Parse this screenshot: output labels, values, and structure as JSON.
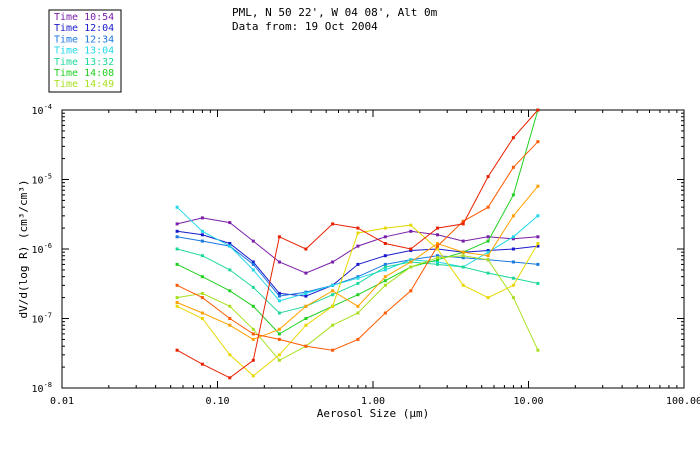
{
  "chart_data": {
    "type": "line",
    "title_line1": "PML, N 50 22', W 04 08', Alt 0m",
    "title_line2": "Data from: 19 Oct 2004",
    "xlabel": "Aerosol Size (μm)",
    "ylabel": "dV/d(log R) (cm³/cm³)",
    "x_scale": "log",
    "y_scale": "log",
    "xlim": [
      0.01,
      100
    ],
    "ylim": [
      1e-08,
      0.0001
    ],
    "x_ticks": [
      {
        "value": 0.01,
        "label": "0.01"
      },
      {
        "value": 0.1,
        "label": "0.10"
      },
      {
        "value": 1,
        "label": "1.00"
      },
      {
        "value": 10,
        "label": "10.00"
      },
      {
        "value": 100,
        "label": "100.00"
      }
    ],
    "y_ticks": [
      {
        "value": 1e-08,
        "base": "10",
        "exp": "-8"
      },
      {
        "value": 1e-07,
        "base": "10",
        "exp": "-7"
      },
      {
        "value": 1e-06,
        "base": "10",
        "exp": "-6"
      },
      {
        "value": 1e-05,
        "base": "10",
        "exp": "-5"
      },
      {
        "value": 0.0001,
        "base": "10",
        "exp": "-4"
      }
    ],
    "grid": false,
    "legend_position": "top-left, outside plot",
    "x": [
      0.055,
      0.08,
      0.12,
      0.17,
      0.25,
      0.37,
      0.55,
      0.8,
      1.2,
      1.75,
      2.6,
      3.8,
      5.5,
      8.0,
      11.5
    ],
    "series": [
      {
        "name": "Time 10:54",
        "color": "#7a1fa8",
        "values": [
          2.3e-06,
          2.8e-06,
          2.4e-06,
          1.3e-06,
          6.5e-07,
          4.5e-07,
          6.5e-07,
          1.1e-06,
          1.5e-06,
          1.8e-06,
          1.6e-06,
          1.3e-06,
          1.5e-06,
          1.4e-06,
          1.5e-06
        ]
      },
      {
        "name": "Time 12:04",
        "color": "#1a1acc",
        "values": [
          1.8e-06,
          1.6e-06,
          1.2e-06,
          6.5e-07,
          2.3e-07,
          2.1e-07,
          3e-07,
          6e-07,
          8e-07,
          9.5e-07,
          1e-06,
          9e-07,
          9.5e-07,
          1e-06,
          1.1e-06
        ]
      },
      {
        "name": "Time 12:34",
        "color": "#1a78e0",
        "values": [
          1.5e-06,
          1.3e-06,
          1.1e-06,
          6e-07,
          2.1e-07,
          2.4e-07,
          3e-07,
          4e-07,
          6e-07,
          7e-07,
          8e-07,
          7.5e-07,
          7e-07,
          6.5e-07,
          6e-07
        ]
      },
      {
        "name": "Time 13:04",
        "color": "#22d8e8",
        "values": [
          4e-06,
          1.8e-06,
          1.1e-06,
          5e-07,
          1.8e-07,
          2.3e-07,
          3e-07,
          3.8e-07,
          5e-07,
          7e-07,
          6.5e-07,
          5.5e-07,
          9e-07,
          1.5e-06,
          3e-06
        ]
      },
      {
        "name": "Time 13:32",
        "color": "#1ed89a",
        "values": [
          1e-06,
          8e-07,
          5e-07,
          2.8e-07,
          1.2e-07,
          1.5e-07,
          2.2e-07,
          3.2e-07,
          5.5e-07,
          6.5e-07,
          6e-07,
          5.5e-07,
          4.5e-07,
          3.8e-07,
          3.2e-07
        ]
      },
      {
        "name": "Time 14:08",
        "color": "#22d022",
        "values": [
          6e-07,
          4e-07,
          2.5e-07,
          1.5e-07,
          6e-08,
          1e-07,
          1.5e-07,
          2.2e-07,
          3.5e-07,
          5.5e-07,
          7e-07,
          9e-07,
          1.3e-06,
          6e-06,
          0.0001
        ]
      },
      {
        "name": "Time 14:49",
        "color": "#a8e020",
        "values": [
          2e-07,
          2.3e-07,
          1.5e-07,
          7e-08,
          2.5e-08,
          4e-08,
          8e-08,
          1.2e-07,
          3e-07,
          5.5e-07,
          7.5e-07,
          8e-07,
          7e-07,
          2e-07,
          3.5e-08
        ]
      },
      {
        "name": "",
        "color": "#e8d800",
        "values": [
          1.5e-07,
          1e-07,
          3e-08,
          1.5e-08,
          3e-08,
          8e-08,
          1.5e-07,
          1.7e-06,
          2e-06,
          2.2e-06,
          1e-06,
          3e-07,
          2e-07,
          3e-07,
          1.2e-06
        ]
      },
      {
        "name": "",
        "color": "#ffa000",
        "values": [
          1.7e-07,
          1.2e-07,
          8e-08,
          5e-08,
          7e-08,
          1.5e-07,
          2.5e-07,
          1.5e-07,
          4e-07,
          6.5e-07,
          1.2e-06,
          9e-07,
          8e-07,
          3e-06,
          8e-06
        ]
      },
      {
        "name": "",
        "color": "#ff5a00",
        "values": [
          3e-07,
          2e-07,
          1e-07,
          6e-08,
          5e-08,
          4e-08,
          3.5e-08,
          5e-08,
          1.2e-07,
          2.5e-07,
          1.1e-06,
          2.5e-06,
          4e-06,
          1.5e-05,
          3.5e-05
        ]
      },
      {
        "name": "",
        "color": "#e82000",
        "values": [
          3.5e-08,
          2.2e-08,
          1.4e-08,
          2.5e-08,
          1.5e-06,
          1e-06,
          2.3e-06,
          2e-06,
          1.2e-06,
          1e-06,
          2e-06,
          2.3e-06,
          1.1e-05,
          4e-05,
          0.0001
        ]
      }
    ]
  }
}
